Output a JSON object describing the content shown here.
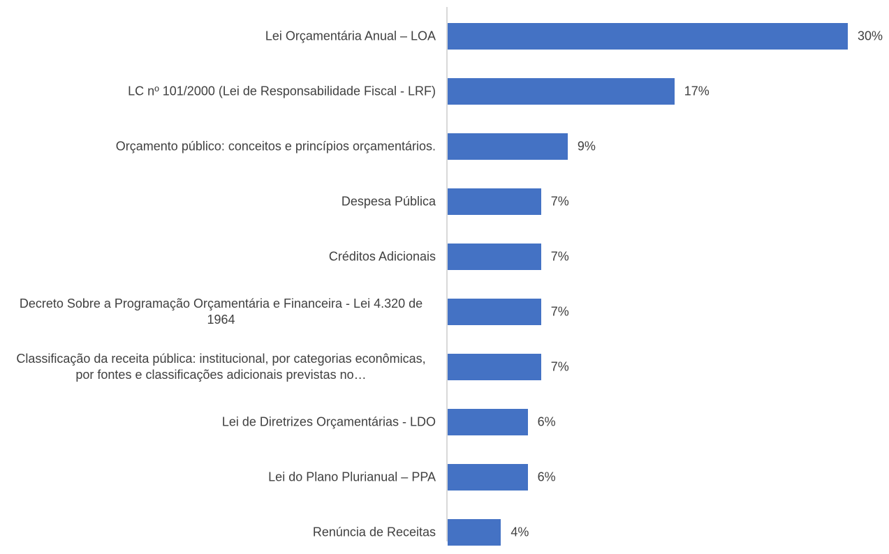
{
  "chart_data": {
    "type": "bar",
    "orientation": "horizontal",
    "categories": [
      "Lei Orçamentária Anual – LOA",
      "LC nº 101/2000 (Lei de Responsabilidade Fiscal - LRF)",
      "Orçamento público: conceitos e princípios orçamentários.",
      "Despesa Pública",
      "Créditos Adicionais",
      "Decreto Sobre a Programação Orçamentária e Financeira - Lei 4.320 de 1964",
      "Classificação da receita pública: institucional, por categorias econômicas, por fontes e classificações adicionais previstas no…",
      "Lei de Diretrizes Orçamentárias - LDO",
      "Lei do Plano Plurianual – PPA",
      "Renúncia de Receitas"
    ],
    "values": [
      30,
      17,
      9,
      7,
      7,
      7,
      7,
      6,
      6,
      4
    ],
    "value_labels": [
      "30%",
      "17%",
      "9%",
      "7%",
      "7%",
      "7%",
      "7%",
      "6%",
      "6%",
      "4%"
    ],
    "color": "#4472c4",
    "xlim": [
      0,
      30
    ]
  }
}
